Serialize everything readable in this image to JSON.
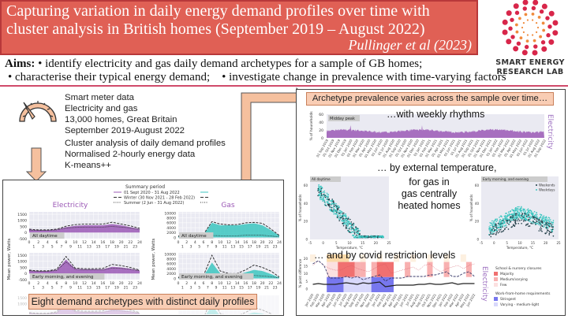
{
  "header": {
    "title": "Capturing variation in daily energy demand profiles over time with cluster analysis in British homes (September 2019 – August 2022)",
    "author": "Pullinger et al (2023)",
    "aims_label": "Aims:",
    "aims": [
      "• identify electricity and gas daily demand archetypes for a sample of GB homes;",
      "• characterise their typical energy demand;",
      "• investigate change in prevalence with time-varying factors"
    ]
  },
  "logo": {
    "line1": "SMART ENERGY",
    "line2": "RESEARCH LAB"
  },
  "info": {
    "data": [
      "Smart meter data",
      "Electricity and gas",
      "13,000 homes, Great Britain",
      "September 2019-August 2022"
    ],
    "method": [
      "Cluster analysis of daily demand profiles",
      "Normalised 2-hourly energy data",
      "K-means++"
    ]
  },
  "left_panel": {
    "legend_title": "Summary period",
    "legend": [
      "01 Sept 2020 - 31 Aug 2022",
      "Winter (30 Nov 2021 - 28 Feb 2022)",
      "Summer (2 Jun - 31 Aug 2022)"
    ],
    "electricity_title": "Electricity",
    "gas_title": "Gas",
    "ylabel": "Mean power, Watts",
    "elec_ticks": [
      "1500",
      "1000",
      "500",
      "0",
      "-500"
    ],
    "gas_ticks": [
      "10000",
      "8000",
      "6000",
      "4000",
      "2000",
      "0"
    ],
    "hours": [
      "0",
      "1",
      "2",
      "3",
      "4",
      "5",
      "6",
      "7",
      "8",
      "9",
      "10",
      "11",
      "12",
      "13",
      "14",
      "15",
      "16",
      "17",
      "18",
      "19",
      "20",
      "21",
      "22",
      "23",
      "24"
    ],
    "archetypes": [
      "All daytime",
      "Early morning, and evening"
    ],
    "banner": "Eight demand archetypes with distinct daily profiles"
  },
  "right_panel": {
    "banner": "Archetype prevalence varies across the sample over time…",
    "weekly": "…with weekly rhythms",
    "ts_label": "Midday peak",
    "ts_ylabel": "% of households",
    "ts_ticks": [
      "60",
      "40",
      "20",
      "0"
    ],
    "electricity": "Electricity",
    "months": [
      "01 Sep 2019",
      "01 Oct 2019",
      "01 Nov 2019",
      "01 Dec 2019",
      "01 Jan 2020",
      "01 Feb 2020",
      "01 Mar 2020",
      "01 Apr 2020",
      "01 May 2020",
      "01 Jun 2020",
      "01 Jul 2020",
      "01 Aug 2020",
      "01 Sep 2020",
      "01 Oct 2020",
      "01 Nov 2020",
      "01 Dec 2020",
      "01 Jan 2021",
      "01 Feb 2021",
      "01 Mar 2021",
      "01 Apr 2021",
      "01 May 2021",
      "01 Jun 2021",
      "01 Jul 2021",
      "01 Aug 2021",
      "01 Sep 2021",
      "01 Oct 2021",
      "01 Nov 2021",
      "01 Dec 2021",
      "01 Jan 2022",
      "01 Feb 2022",
      "01 Mar 2022",
      "01 Apr 2022",
      "01 May 2022",
      "01 Jun 2022",
      "01 Jul 2022",
      "01 Aug 2022",
      "01 Sep 2022"
    ],
    "temp_caption": "… by external temperature,",
    "gas_caption": [
      "for gas in",
      "gas centrally",
      "heated homes"
    ],
    "scatter_titles": [
      "All daytime",
      "Early morning, and evening"
    ],
    "scatter_xlabel": "Temperature, °C",
    "scatter_ylabel": "% of households",
    "scatter_xticks": [
      "-5",
      "0",
      "5",
      "10",
      "15",
      "20",
      "25"
    ],
    "scatter_yticks": [
      "60",
      "40",
      "20",
      "0"
    ],
    "scatter_legend": [
      "Weekends",
      "Weekdays"
    ],
    "covid_caption": "… and by covid restriction levels",
    "covid_ylabel": "% point difference",
    "covid_yticks": [
      "20",
      "15",
      "10",
      "5",
      "0"
    ],
    "covid_months": [
      "Jan 2020",
      "Feb 2020",
      "Mar 2020",
      "Apr 2020",
      "May 2020",
      "Jun 2020",
      "Jul 2020",
      "Aug 2020",
      "Sep 2020",
      "Oct 2020",
      "Nov 2020",
      "Dec 2020",
      "Jan 2021",
      "Feb 2021",
      "Mar 2021",
      "Apr 2021",
      "May 2021",
      "Jun 2021",
      "Jul 2021",
      "Aug 2021",
      "Sep 2021",
      "Oct 2021",
      "Nov 2021",
      "Dec 2021",
      "Jan 2022",
      "Feb 2022",
      "Mar 2022",
      "Apr 2022",
      "May 2022",
      "Jun 2022"
    ],
    "legend_school": "School & nursery closures",
    "school_levels": [
      "Majority",
      "Medium/varying",
      "Few"
    ],
    "legend_wfh": "Work-from-home requirements",
    "wfh_levels": [
      "Stringent",
      "Varying - medium-light"
    ]
  },
  "colors": {
    "title_bg": "#e06055",
    "electricity": "#9b59b6",
    "gas": "#3cc6c0",
    "banner": "#f9cdb4",
    "arrow": "#f5c09e"
  }
}
